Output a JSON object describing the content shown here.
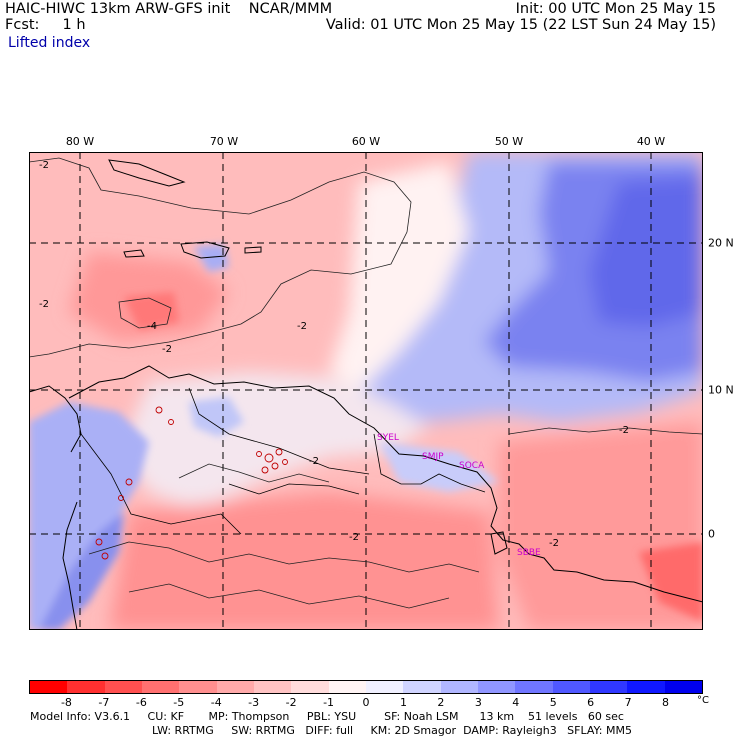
{
  "header": {
    "title": "HAIC-HIWC 13km ARW-GFS init",
    "org": "NCAR/MMM",
    "fcst_label": "Fcst:",
    "fcst_value": "1 h",
    "init": "Init: 00 UTC Mon 25 May 15",
    "valid": "Valid: 01 UTC Mon 25 May 15 (22 LST Sun 24 May 15)"
  },
  "field_name": "Lifted index",
  "axes": {
    "lon_labels": [
      "80 W",
      "70 W",
      "60 W",
      "50 W",
      "40 W"
    ],
    "lat_labels": [
      "20 N",
      "10 N",
      "0"
    ]
  },
  "stations": [
    "SYEL",
    "SMJP",
    "SOCA",
    "SBBE"
  ],
  "contour_labels": [
    "-2",
    "-2",
    "-4",
    "-2",
    "-2",
    "-2",
    "-2",
    "-2",
    "-2"
  ],
  "colorbar": {
    "ticks": [
      "-8",
      "-7",
      "-6",
      "-5",
      "-4",
      "-3",
      "-2",
      "-1",
      "0",
      "1",
      "2",
      "3",
      "4",
      "5",
      "6",
      "7",
      "8"
    ],
    "unit": "°C",
    "colors": [
      "#ff0000",
      "#ff3030",
      "#ff5050",
      "#ff7070",
      "#ff8f8f",
      "#ffaaaa",
      "#ffc4c4",
      "#ffdcdc",
      "#fff4f4",
      "#f0f0ff",
      "#d0d4ff",
      "#b0b6ff",
      "#9096ff",
      "#7076ff",
      "#5058ff",
      "#3038ff",
      "#1018ff",
      "#0000ee"
    ]
  },
  "footer": {
    "line1": "Model Info: V3.6.1     CU: KF       MP: Thompson     PBL: YSU        SF: Noah LSM      13 km    51 levels   60 sec",
    "line2": "LW: RRTMG     SW: RRTMG   DIFF: full     KM: 2D Smagor  DAMP: Rayleigh3   SFLAY: MM5"
  }
}
